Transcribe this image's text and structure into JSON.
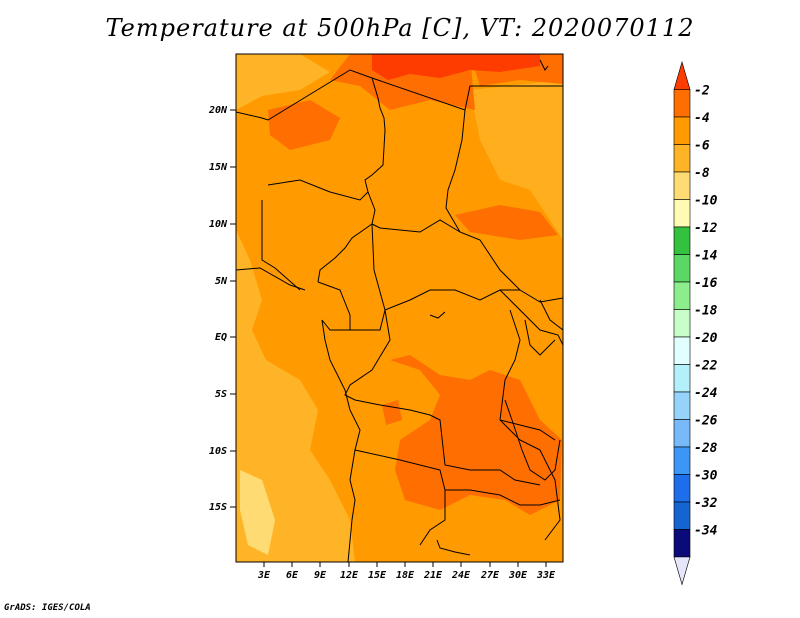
{
  "title": "Temperature at 500hPa [C], VT: 2020070112",
  "credit": "GrADS: IGES/COLA",
  "map": {
    "lat_labels": [
      "20N",
      "15N",
      "10N",
      "5N",
      "EQ",
      "5S",
      "10S",
      "15S"
    ],
    "lon_labels": [
      "3E",
      "6E",
      "9E",
      "12E",
      "15E",
      "18E",
      "21E",
      "24E",
      "27E",
      "30E",
      "33E"
    ]
  },
  "colorbar": {
    "labels": [
      "-2",
      "-4",
      "-6",
      "-8",
      "-10",
      "-12",
      "-14",
      "-16",
      "-18",
      "-20",
      "-22",
      "-24",
      "-26",
      "-28",
      "-30",
      "-32",
      "-34"
    ],
    "colors": [
      "#ff3c00",
      "#ff6e00",
      "#ff9a00",
      "#ffb428",
      "#ffdc73",
      "#fffbb4",
      "#33c13f",
      "#5ad764",
      "#8ced8c",
      "#c8ffc8",
      "#e1ffff",
      "#b4f0fa",
      "#96d2fa",
      "#78b9fa",
      "#3c96f5",
      "#1e6eeb",
      "#1464d2",
      "#0a0a78",
      "#e6e6fa"
    ]
  }
}
